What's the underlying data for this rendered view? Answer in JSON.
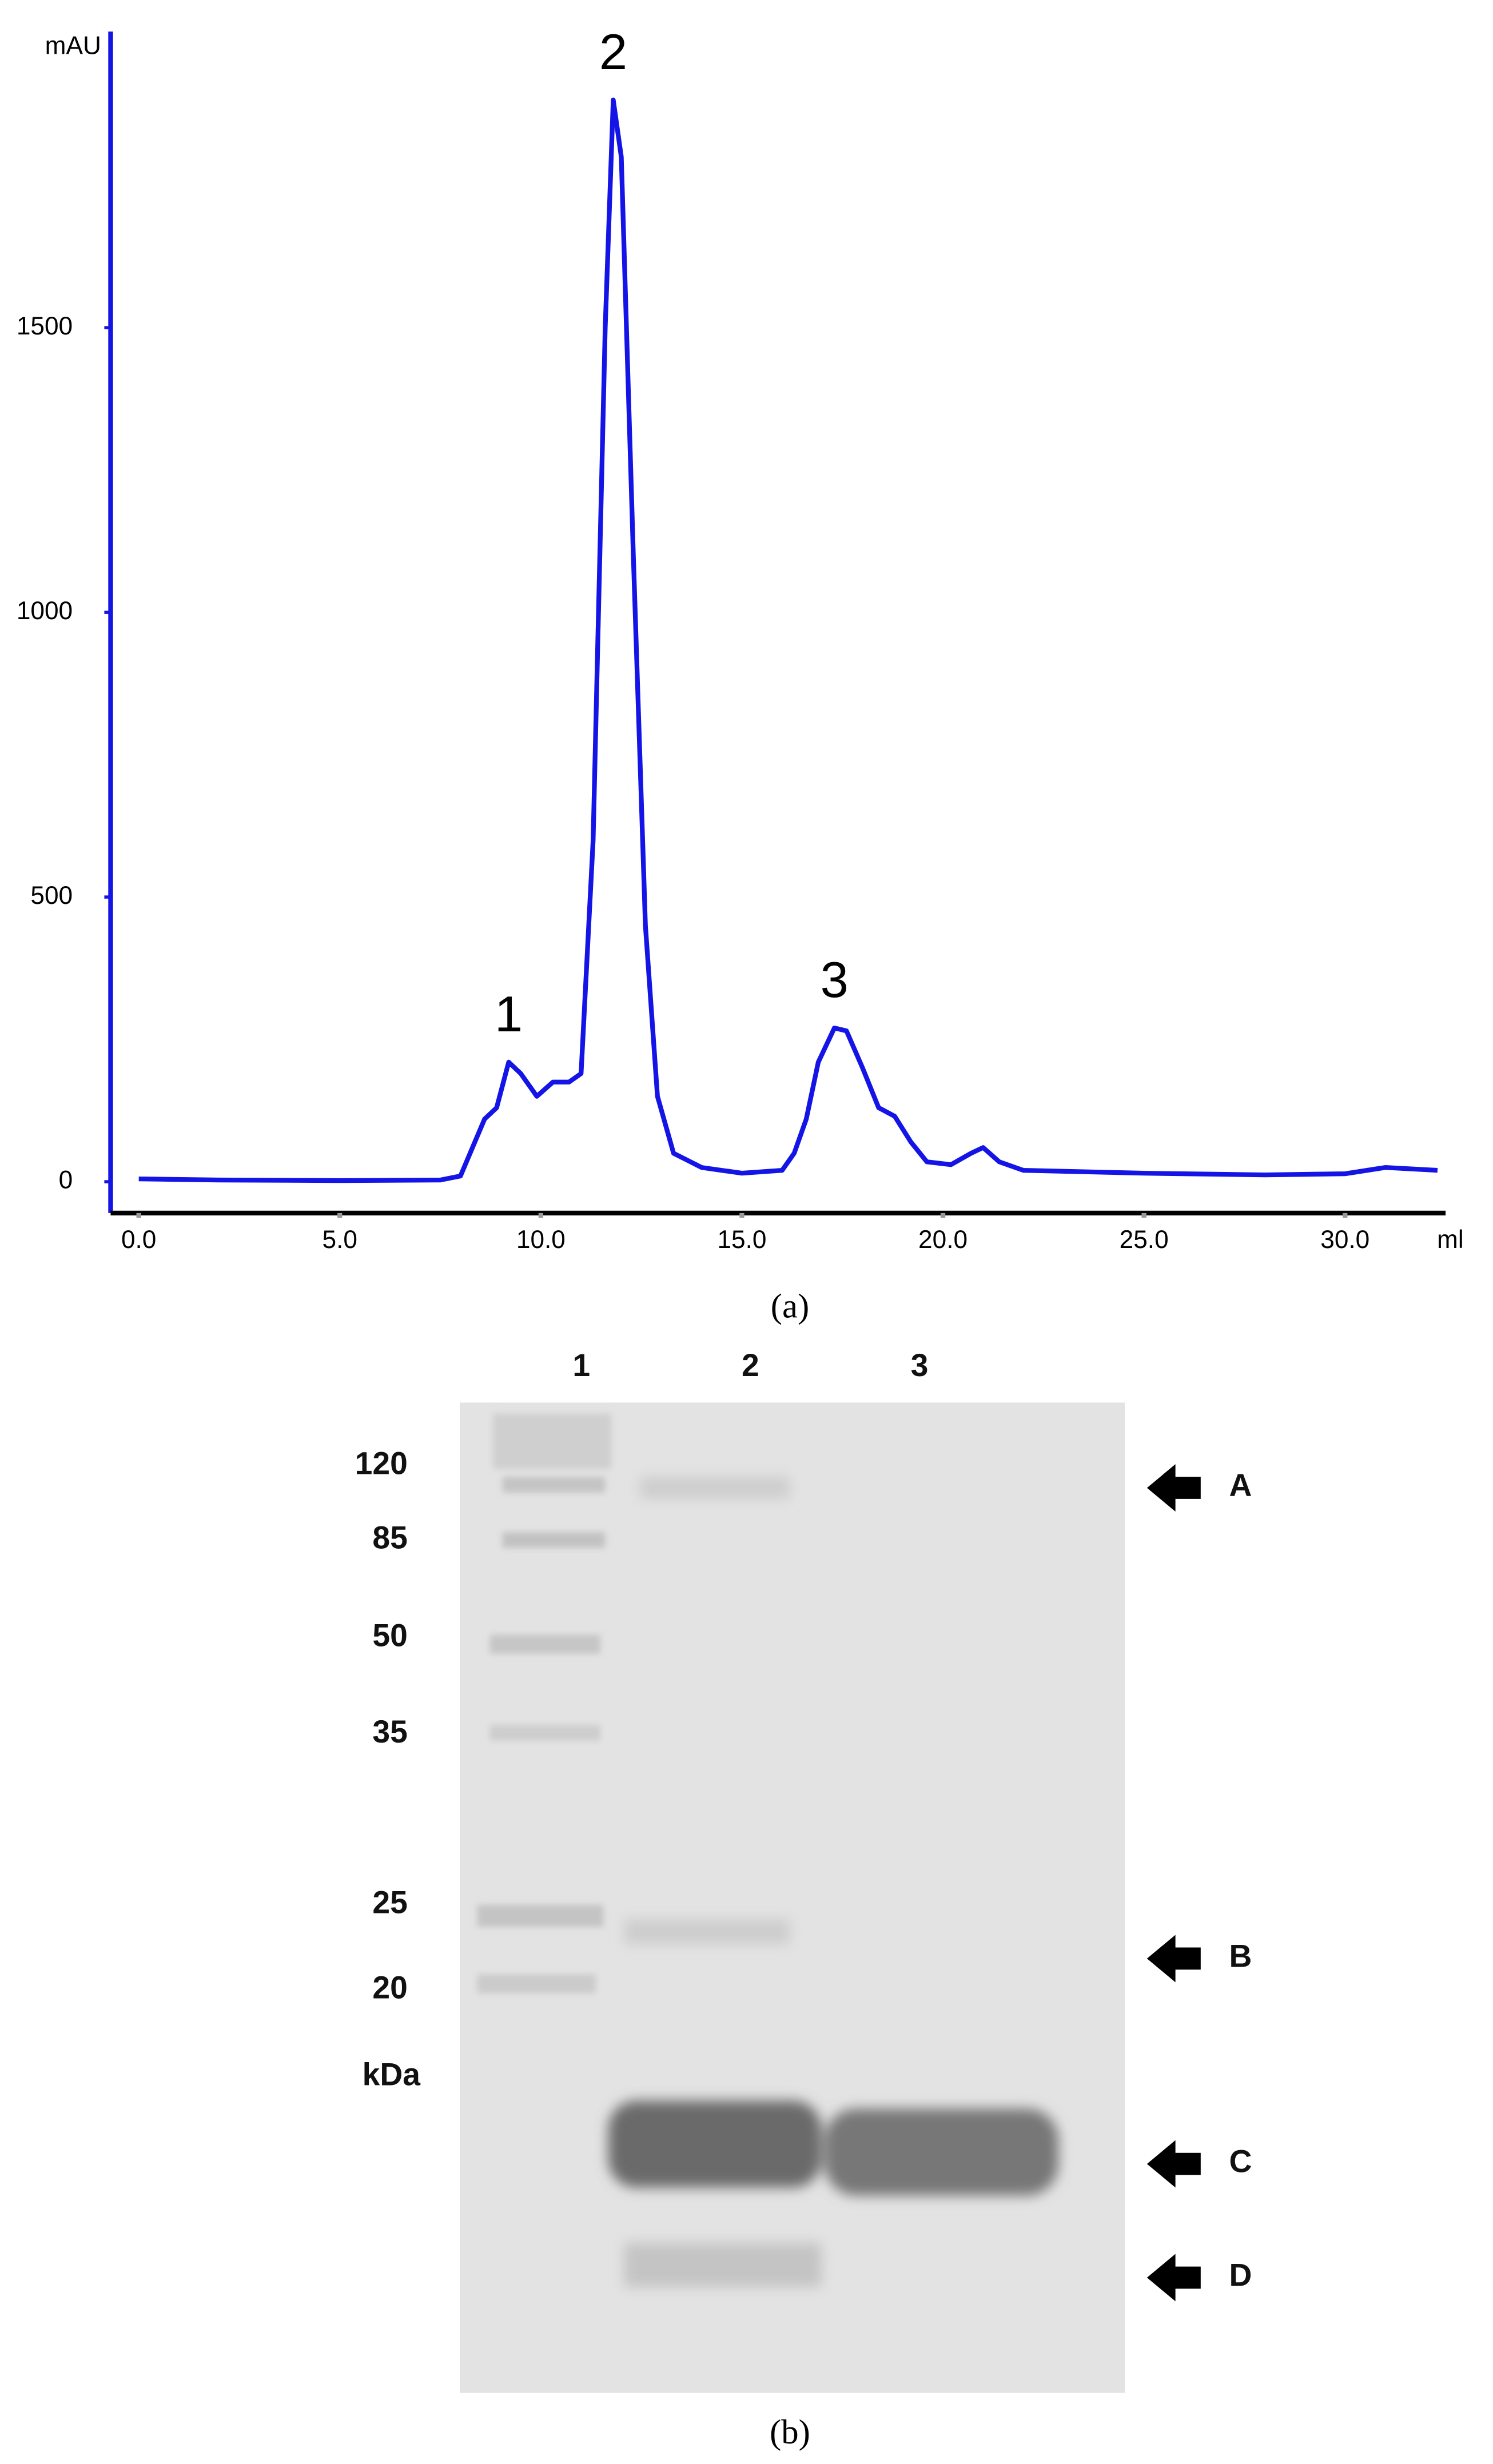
{
  "chart_data": {
    "type": "line",
    "y_label": "mAU",
    "x_label": "ml",
    "caption": "(a)",
    "color": "#1414e6",
    "x": [
      0,
      2,
      5,
      7.5,
      8,
      8.3,
      8.6,
      8.9,
      9.2,
      9.5,
      9.9,
      10.3,
      10.7,
      11.0,
      11.3,
      11.6,
      11.8,
      12.0,
      12.3,
      12.6,
      12.9,
      13.3,
      14,
      15,
      16,
      16.3,
      16.6,
      16.9,
      17.3,
      17.6,
      18.0,
      18.4,
      18.8,
      19.2,
      19.6,
      20.2,
      20.7,
      21.0,
      21.4,
      22,
      25,
      28,
      30,
      31,
      32.3
    ],
    "values": [
      5,
      3,
      2,
      3,
      10,
      60,
      110,
      130,
      210,
      190,
      150,
      175,
      175,
      190,
      600,
      1500,
      1900,
      1800,
      1100,
      450,
      150,
      50,
      25,
      15,
      20,
      50,
      110,
      210,
      270,
      265,
      200,
      130,
      115,
      70,
      35,
      30,
      50,
      60,
      35,
      20,
      15,
      12,
      14,
      25,
      20
    ],
    "annotations": [
      {
        "text": "1",
        "x": 9.2
      },
      {
        "text": "2",
        "x": 11.8
      },
      {
        "text": "3",
        "x": 17.3
      }
    ],
    "xlim": [
      -0.7,
      32.5
    ],
    "ylim": [
      -55,
      2020
    ],
    "xticks": [
      {
        "value": 0,
        "label": "0.0"
      },
      {
        "value": 5,
        "label": "5.0"
      },
      {
        "value": 10,
        "label": "10.0"
      },
      {
        "value": 15,
        "label": "15.0"
      },
      {
        "value": 20,
        "label": "20.0"
      },
      {
        "value": 25,
        "label": "25.0"
      },
      {
        "value": 30,
        "label": "30.0"
      }
    ],
    "yticks": [
      0,
      500,
      1000,
      1500
    ],
    "grid": false
  },
  "gel": {
    "lanes": [
      "1",
      "2",
      "3"
    ],
    "markers": [
      "120",
      "85",
      "50",
      "35",
      "25",
      "20"
    ],
    "unit": "kDa",
    "arrows": [
      "A",
      "B",
      "C",
      "D"
    ],
    "caption": "(b)"
  }
}
